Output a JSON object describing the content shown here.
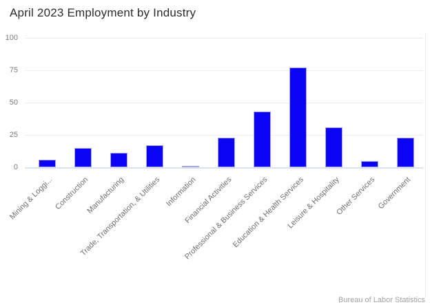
{
  "chart": {
    "title": "April 2023 Employment by Industry",
    "credit": "Bureau of Labor Statistics"
  },
  "chart_data": {
    "type": "bar",
    "title": "April 2023 Employment by Industry",
    "categories": [
      "Mining & Loggi...",
      "Construction",
      "Manufacturing",
      "Trade, Transportation, & Utilities",
      "Information",
      "Financial Activities",
      "Professional & Business Services",
      "Education & Health Services",
      "Leisure & Hospitality",
      "Other Services",
      "Government"
    ],
    "values": [
      6,
      15,
      11,
      17,
      1,
      23,
      43,
      77,
      31,
      5,
      23
    ],
    "xlabel": "",
    "ylabel": "",
    "ylim": [
      0,
      100
    ],
    "yticks": [
      0,
      25,
      50,
      75,
      100
    ],
    "grid": true,
    "legend": "none",
    "bar_color": "#0b04f2",
    "bar_border_color": "#a7a7ef",
    "gridline_color": "#ececec",
    "baseline_color": "#dce2f4",
    "credit": "Bureau of Labor Statistics"
  }
}
